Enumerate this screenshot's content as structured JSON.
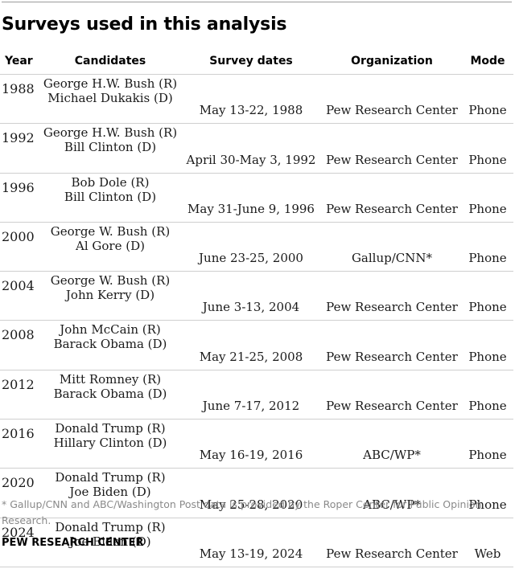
{
  "title": "Surveys used in this analysis",
  "headers": {
    "year": "Year",
    "candidates": "Candidates",
    "survey_dates": "Survey dates",
    "organization": "Organization",
    "mode": "Mode"
  },
  "rows": [
    {
      "year": "1988",
      "candidate_r": "George H.W. Bush (R)",
      "candidate_d": "Michael Dukakis (D)",
      "dates": "May 13-22, 1988",
      "organization": "Pew Research Center",
      "mode": "Phone"
    },
    {
      "year": "1992",
      "candidate_r": "George H.W. Bush (R)",
      "candidate_d": "Bill Clinton (D)",
      "dates": "April 30-May 3, 1992",
      "organization": "Pew Research Center",
      "mode": "Phone"
    },
    {
      "year": "1996",
      "candidate_r": "Bob Dole (R)",
      "candidate_d": "Bill Clinton (D)",
      "dates": "May 31-June 9, 1996",
      "organization": "Pew Research Center",
      "mode": "Phone"
    },
    {
      "year": "2000",
      "candidate_r": "George W. Bush (R)",
      "candidate_d": "Al Gore (D)",
      "dates": "June 23-25, 2000",
      "organization": "Gallup/CNN*",
      "mode": "Phone"
    },
    {
      "year": "2004",
      "candidate_r": "George W. Bush (R)",
      "candidate_d": "John Kerry (D)",
      "dates": "June 3-13, 2004",
      "organization": "Pew Research Center",
      "mode": "Phone"
    },
    {
      "year": "2008",
      "candidate_r": "John McCain (R)",
      "candidate_d": "Barack Obama (D)",
      "dates": "May 21-25, 2008",
      "organization": "Pew Research Center",
      "mode": "Phone"
    },
    {
      "year": "2012",
      "candidate_r": "Mitt Romney (R)",
      "candidate_d": "Barack Obama (D)",
      "dates": "June 7-17, 2012",
      "organization": "Pew Research Center",
      "mode": "Phone"
    },
    {
      "year": "2016",
      "candidate_r": "Donald Trump (R)",
      "candidate_d": "Hillary Clinton (D)",
      "dates": "May 16-19, 2016",
      "organization": "ABC/WP*",
      "mode": "Phone"
    },
    {
      "year": "2020",
      "candidate_r": "Donald Trump (R)",
      "candidate_d": "Joe Biden (D)",
      "dates": "May 25-28, 2020",
      "organization": "ABC/WP*",
      "mode": "Phone"
    },
    {
      "year": "2024",
      "candidate_r": "Donald Trump (R)",
      "candidate_d": "Joe Biden (D)",
      "dates": "May 13-19, 2024",
      "organization": "Pew Research Center",
      "mode": "Web"
    }
  ],
  "footnote": "* Gallup/CNN and ABC/Washington Post data is provided by the Roper Center for Public Opinion Research.",
  "source": "PEW RESEARCH CENTER"
}
